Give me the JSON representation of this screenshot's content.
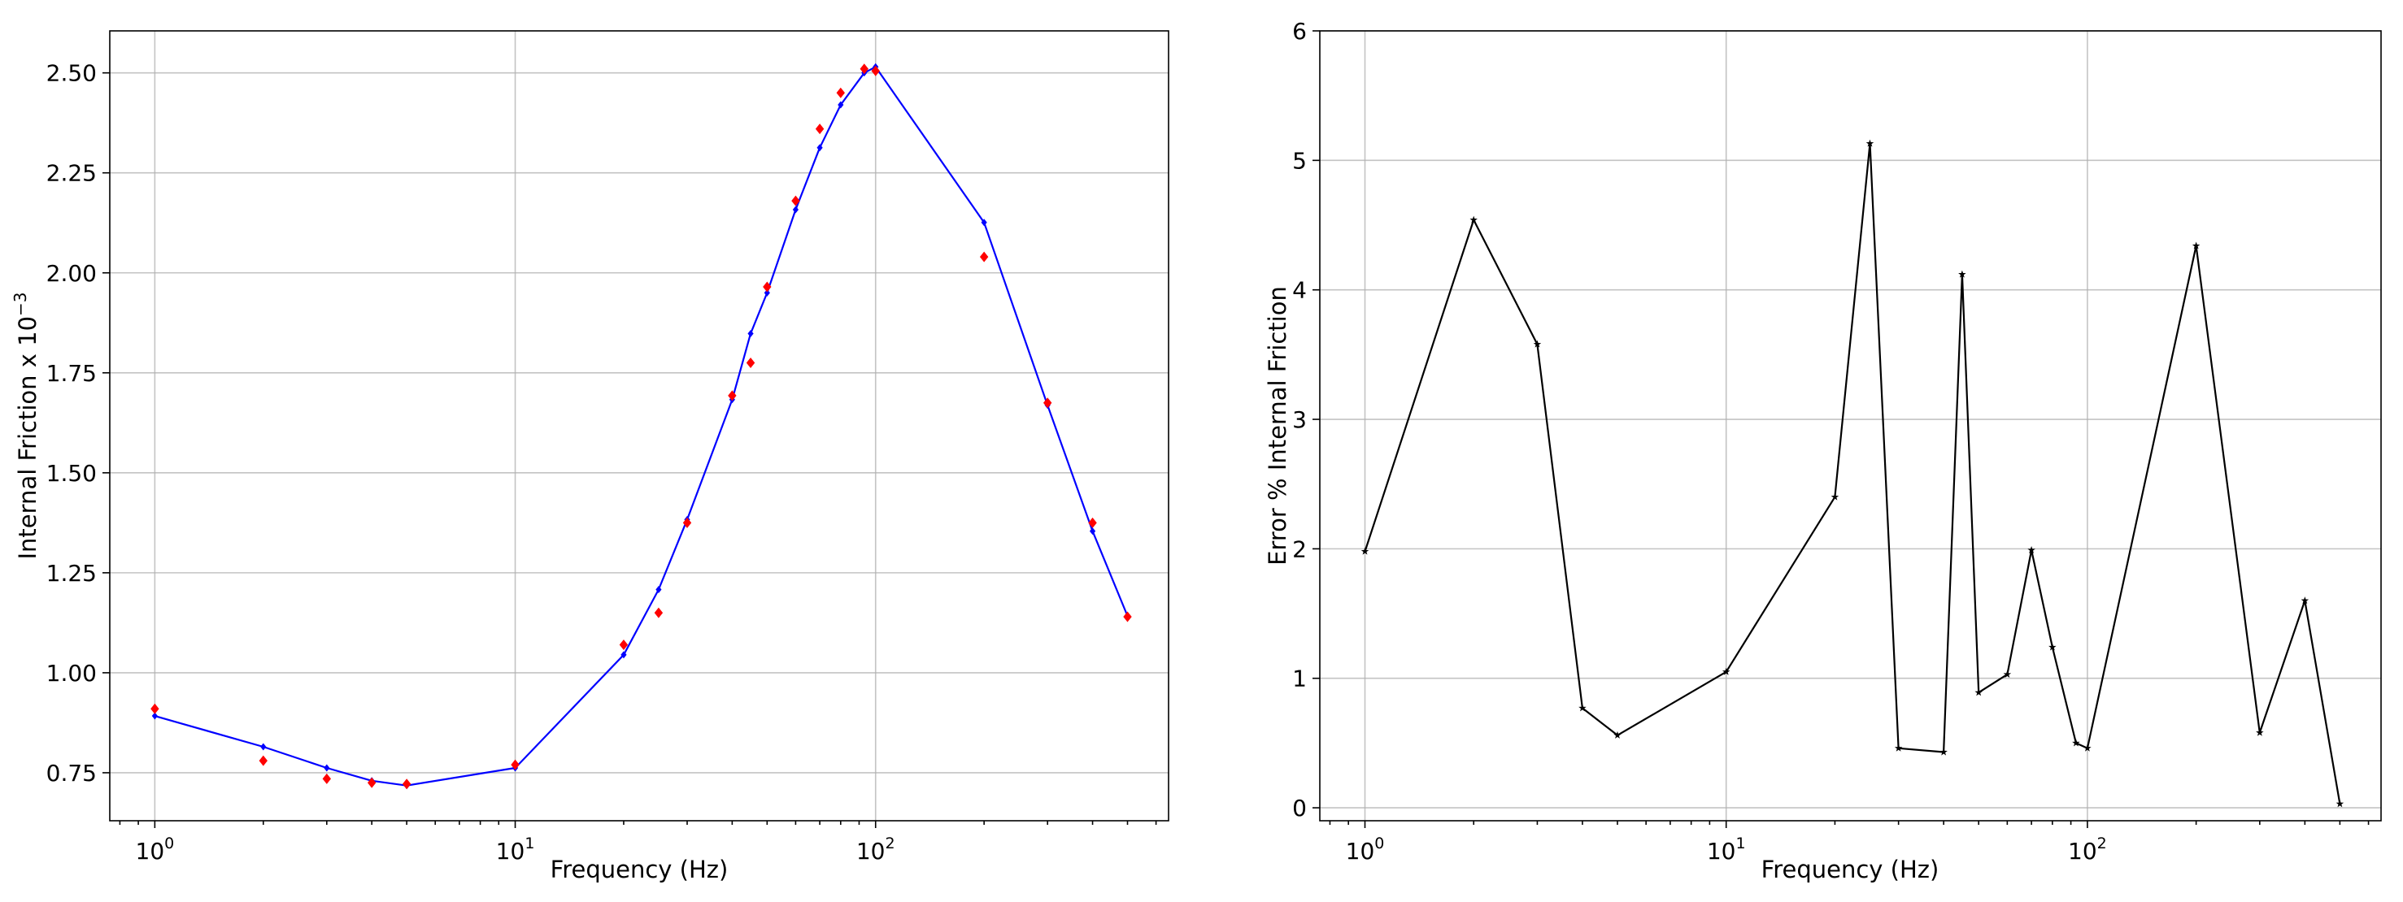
{
  "chart_data": [
    {
      "type": "line",
      "title": "",
      "xlabel": "Frequency (Hz)",
      "ylabel": "Internal Friction x 10",
      "ylabel_exponent": "−3",
      "xscale": "log",
      "xlim": [
        0.75,
        650
      ],
      "ylim": [
        0.63,
        2.605
      ],
      "grid": true,
      "xticks": [
        1,
        10,
        100
      ],
      "xtick_labels": [
        {
          "base": "10",
          "exp": "0"
        },
        {
          "base": "10",
          "exp": "1"
        },
        {
          "base": "10",
          "exp": "2"
        }
      ],
      "yticks": [
        0.75,
        1.0,
        1.25,
        1.5,
        1.75,
        2.0,
        2.25,
        2.5
      ],
      "ytick_labels": [
        "0.75",
        "1.00",
        "1.25",
        "1.50",
        "1.75",
        "2.00",
        "2.25",
        "2.50"
      ],
      "series": [
        {
          "style": "line-with-markers",
          "color": "#0000ff",
          "marker": "diamond",
          "x": [
            1,
            2,
            3,
            4,
            5,
            10,
            20,
            25,
            30,
            40,
            45,
            50,
            60,
            70,
            80,
            93,
            100,
            200,
            300,
            400,
            500
          ],
          "y": [
            0.892,
            0.815,
            0.762,
            0.73,
            0.718,
            0.762,
            1.045,
            1.208,
            1.383,
            1.683,
            1.848,
            1.95,
            2.158,
            2.313,
            2.42,
            2.5,
            2.515,
            2.126,
            1.669,
            1.354,
            1.142
          ]
        },
        {
          "style": "markers",
          "color": "#ff0000",
          "marker": "diamond",
          "x": [
            1,
            2,
            3,
            4,
            5,
            10,
            20,
            25,
            30,
            40,
            45,
            50,
            60,
            70,
            80,
            93,
            100,
            200,
            300,
            400,
            500
          ],
          "y": [
            0.91,
            0.78,
            0.735,
            0.725,
            0.722,
            0.77,
            1.07,
            1.15,
            1.375,
            1.693,
            1.775,
            1.965,
            2.18,
            2.36,
            2.45,
            2.51,
            2.505,
            2.04,
            1.675,
            1.375,
            1.14
          ]
        }
      ]
    },
    {
      "type": "line",
      "title": "",
      "xlabel": "Frequency (Hz)",
      "ylabel": "Error % Internal Friction",
      "xscale": "log",
      "xlim": [
        0.75,
        650
      ],
      "ylim": [
        -0.1,
        6.0
      ],
      "grid": true,
      "xticks": [
        1,
        10,
        100
      ],
      "xtick_labels": [
        {
          "base": "10",
          "exp": "0"
        },
        {
          "base": "10",
          "exp": "1"
        },
        {
          "base": "10",
          "exp": "2"
        }
      ],
      "yticks": [
        0,
        1,
        2,
        3,
        4,
        5,
        6
      ],
      "ytick_labels": [
        "0",
        "1",
        "2",
        "3",
        "4",
        "5",
        "6"
      ],
      "series": [
        {
          "style": "line-with-markers",
          "color": "#000000",
          "marker": "star",
          "x": [
            1,
            2,
            3,
            4,
            5,
            10,
            20,
            25,
            30,
            40,
            45,
            50,
            60,
            70,
            80,
            93,
            100,
            200,
            300,
            400,
            500
          ],
          "y": [
            1.98,
            4.54,
            3.58,
            0.77,
            0.56,
            1.05,
            2.4,
            5.13,
            0.46,
            0.43,
            4.12,
            0.89,
            1.03,
            1.99,
            1.24,
            0.5,
            0.46,
            4.34,
            0.58,
            1.6,
            0.03
          ]
        }
      ]
    }
  ]
}
